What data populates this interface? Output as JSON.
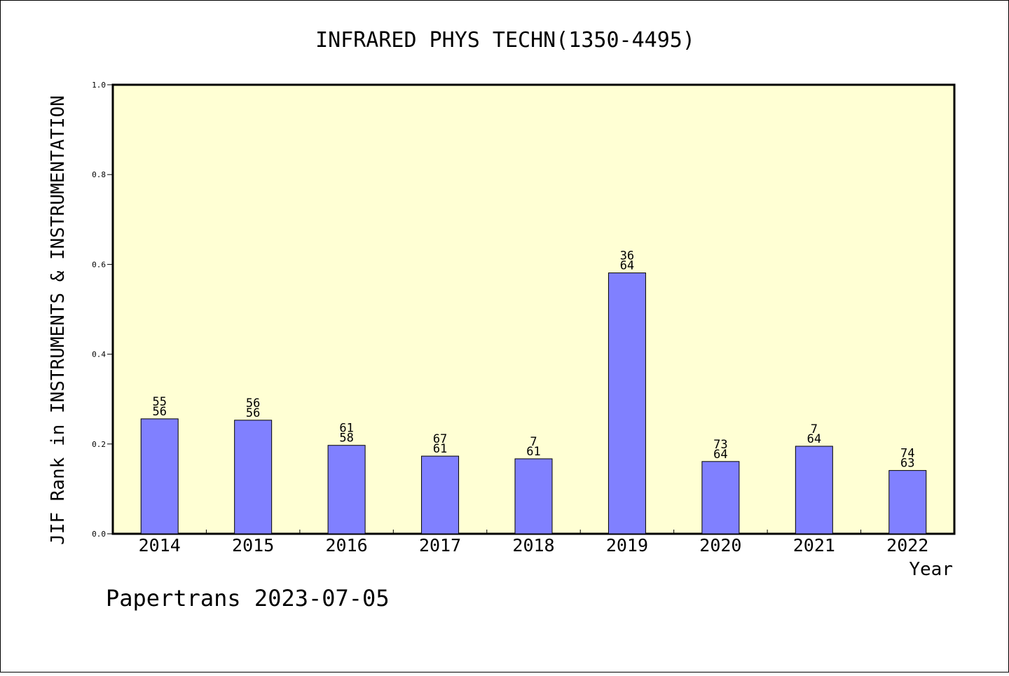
{
  "chart_data": {
    "type": "bar",
    "title": "INFRARED PHYS TECHN(1350-4495)",
    "ylabel": "JIF Rank in INSTRUMENTS & INSTRUMENTATION",
    "xlabel": "Year",
    "ylim": [
      0,
      1.0
    ],
    "yticks": [
      "0.0",
      "0.2",
      "0.4",
      "0.6",
      "0.8",
      "1.0"
    ],
    "grid": false,
    "categories": [
      "2014",
      "2015",
      "2016",
      "2017",
      "2018",
      "2019",
      "2020",
      "2021",
      "2022"
    ],
    "values": [
      0.256,
      0.253,
      0.197,
      0.173,
      0.167,
      0.581,
      0.161,
      0.195,
      0.141
    ],
    "labels_top": [
      "55",
      "56",
      "61",
      "67",
      "7",
      "36",
      "73",
      "7",
      "74"
    ],
    "labels_bottom": [
      "56",
      "56",
      "58",
      "61",
      "61",
      "64",
      "64",
      "64",
      "63"
    ],
    "colors": {
      "plot_background": "#ffffd4",
      "bar_fill": "#8080ff",
      "bar_stroke": "#000000"
    }
  },
  "footer": "Papertrans 2023-07-05"
}
